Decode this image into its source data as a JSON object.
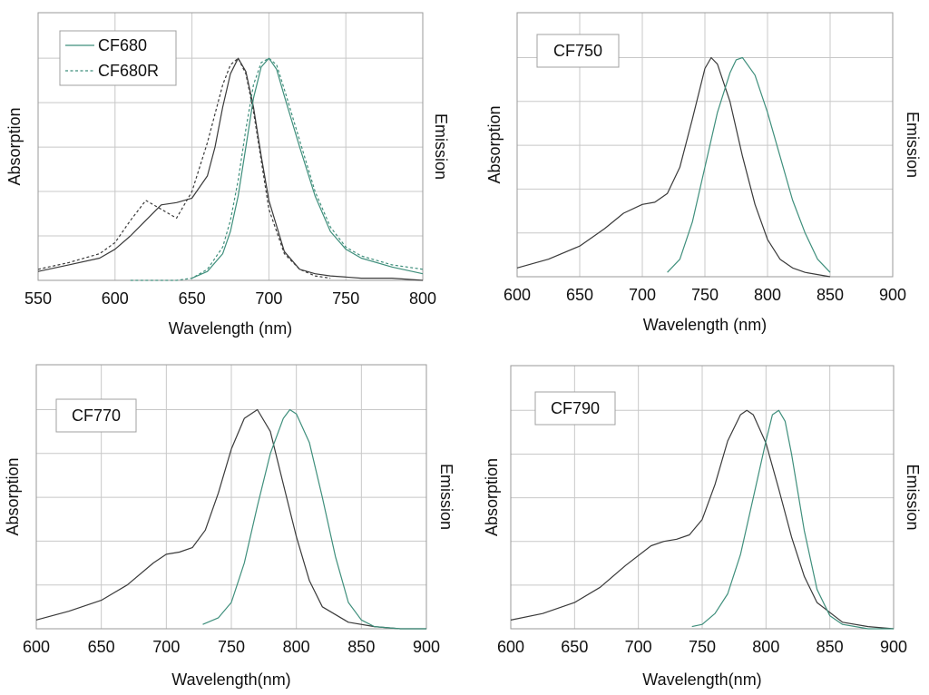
{
  "colors": {
    "absorption": "#3a3a3a",
    "emission": "#3f8f7c",
    "grid": "#c8c8c8"
  },
  "chart_data": [
    {
      "type": "line",
      "label": "",
      "legend": [
        "CF680",
        "CF680R"
      ],
      "legend_placement": "top-left",
      "xlabel": "Wavelength (nm)",
      "ylabel_left": "Absorption",
      "ylabel_right": "Emission",
      "xlim": [
        550,
        800
      ],
      "ylim": [
        0,
        1
      ],
      "xticks": [
        550,
        600,
        650,
        700,
        750,
        800
      ],
      "xtick_labels": [
        "550",
        "600",
        "650",
        "700",
        "750",
        "800"
      ],
      "grid": true,
      "series": [
        {
          "name": "CF680",
          "kind": "absorption",
          "style": "solid",
          "x": [
            550,
            570,
            590,
            600,
            610,
            620,
            630,
            640,
            650,
            660,
            665,
            670,
            675,
            680,
            685,
            690,
            695,
            700,
            710,
            720,
            730,
            740,
            760,
            780,
            800
          ],
          "y": [
            0.04,
            0.07,
            0.1,
            0.14,
            0.2,
            0.27,
            0.34,
            0.35,
            0.37,
            0.47,
            0.6,
            0.78,
            0.93,
            1.0,
            0.94,
            0.78,
            0.56,
            0.36,
            0.13,
            0.05,
            0.03,
            0.02,
            0.01,
            0.01,
            0.0
          ]
        },
        {
          "name": "CF680R",
          "kind": "absorption",
          "style": "dashed",
          "x": [
            550,
            570,
            590,
            600,
            610,
            620,
            630,
            640,
            650,
            660,
            670,
            675,
            680,
            685,
            690,
            700,
            710,
            720,
            730,
            740
          ],
          "y": [
            0.05,
            0.08,
            0.12,
            0.17,
            0.27,
            0.36,
            0.32,
            0.28,
            0.4,
            0.62,
            0.88,
            0.97,
            1.0,
            0.93,
            0.76,
            0.32,
            0.12,
            0.05,
            0.02,
            0.01
          ]
        },
        {
          "name": "CF680",
          "kind": "emission",
          "style": "solid",
          "x": [
            650,
            660,
            670,
            675,
            680,
            685,
            690,
            695,
            700,
            705,
            710,
            720,
            730,
            740,
            750,
            760,
            780,
            800
          ],
          "y": [
            0.01,
            0.04,
            0.12,
            0.22,
            0.38,
            0.6,
            0.82,
            0.96,
            1.0,
            0.95,
            0.83,
            0.6,
            0.38,
            0.22,
            0.14,
            0.1,
            0.06,
            0.03
          ]
        },
        {
          "name": "CF680R",
          "kind": "emission",
          "style": "dashed",
          "x": [
            610,
            640,
            650,
            660,
            670,
            675,
            680,
            685,
            690,
            695,
            700,
            705,
            710,
            720,
            730,
            740,
            750,
            760,
            780,
            800
          ],
          "y": [
            0.0,
            0.0,
            0.01,
            0.05,
            0.15,
            0.27,
            0.45,
            0.68,
            0.88,
            0.98,
            1.0,
            0.97,
            0.86,
            0.63,
            0.4,
            0.24,
            0.15,
            0.11,
            0.07,
            0.05
          ]
        }
      ]
    },
    {
      "type": "line",
      "label": "CF750",
      "xlabel": "Wavelength (nm)",
      "ylabel_left": "Absorption",
      "ylabel_right": "Emission",
      "xlim": [
        600,
        900
      ],
      "ylim": [
        0,
        1
      ],
      "xticks": [
        600,
        650,
        700,
        750,
        800,
        850,
        900
      ],
      "xtick_labels": [
        "600",
        "650",
        "700",
        "750",
        "800",
        "850",
        "900"
      ],
      "grid": true,
      "series": [
        {
          "kind": "absorption",
          "style": "solid",
          "x": [
            600,
            625,
            650,
            670,
            685,
            700,
            710,
            720,
            730,
            740,
            750,
            755,
            760,
            770,
            780,
            790,
            800,
            810,
            820,
            830,
            850
          ],
          "y": [
            0.04,
            0.08,
            0.14,
            0.22,
            0.29,
            0.33,
            0.34,
            0.38,
            0.5,
            0.72,
            0.95,
            1.0,
            0.97,
            0.8,
            0.55,
            0.33,
            0.17,
            0.08,
            0.04,
            0.02,
            0.0
          ]
        },
        {
          "kind": "emission",
          "style": "solid",
          "x": [
            720,
            730,
            740,
            750,
            760,
            770,
            775,
            780,
            790,
            800,
            810,
            820,
            830,
            840,
            850
          ],
          "y": [
            0.02,
            0.08,
            0.25,
            0.5,
            0.75,
            0.93,
            0.99,
            1.0,
            0.92,
            0.75,
            0.55,
            0.35,
            0.2,
            0.08,
            0.02
          ]
        }
      ]
    },
    {
      "type": "line",
      "label": "CF770",
      "xlabel": "Wavelength(nm)",
      "ylabel_left": "Absorption",
      "ylabel_right": "Emission",
      "xlim": [
        600,
        900
      ],
      "ylim": [
        0,
        1
      ],
      "xticks": [
        600,
        650,
        700,
        750,
        800,
        850,
        900
      ],
      "xtick_labels": [
        "600",
        "650",
        "700",
        "750",
        "800",
        "850",
        "900"
      ],
      "grid": true,
      "series": [
        {
          "kind": "absorption",
          "style": "solid",
          "x": [
            600,
            625,
            650,
            670,
            690,
            700,
            710,
            720,
            730,
            740,
            750,
            760,
            770,
            780,
            790,
            800,
            810,
            820,
            840,
            860,
            880,
            900
          ],
          "y": [
            0.04,
            0.08,
            0.13,
            0.2,
            0.3,
            0.34,
            0.35,
            0.37,
            0.45,
            0.62,
            0.82,
            0.96,
            1.0,
            0.9,
            0.66,
            0.42,
            0.22,
            0.1,
            0.03,
            0.01,
            0.0,
            0.0
          ]
        },
        {
          "kind": "emission",
          "style": "solid",
          "x": [
            728,
            740,
            750,
            760,
            770,
            780,
            790,
            795,
            800,
            810,
            820,
            830,
            840,
            850,
            860,
            880,
            900
          ],
          "y": [
            0.02,
            0.05,
            0.12,
            0.3,
            0.56,
            0.8,
            0.96,
            1.0,
            0.98,
            0.85,
            0.6,
            0.33,
            0.12,
            0.04,
            0.01,
            0.0,
            0.0
          ]
        }
      ]
    },
    {
      "type": "line",
      "label": "CF790",
      "xlabel": "Wavelength(nm)",
      "ylabel_left": "Absorption",
      "ylabel_right": "Emission",
      "xlim": [
        600,
        900
      ],
      "ylim": [
        0,
        1
      ],
      "xticks": [
        600,
        650,
        700,
        750,
        800,
        850,
        900
      ],
      "xtick_labels": [
        "600",
        "650",
        "700",
        "750",
        "800",
        "850",
        "900"
      ],
      "grid": true,
      "series": [
        {
          "kind": "absorption",
          "style": "solid",
          "x": [
            600,
            625,
            650,
            670,
            690,
            710,
            720,
            730,
            740,
            750,
            760,
            770,
            780,
            785,
            790,
            800,
            810,
            820,
            830,
            840,
            860,
            880,
            900
          ],
          "y": [
            0.04,
            0.07,
            0.12,
            0.19,
            0.29,
            0.38,
            0.4,
            0.41,
            0.43,
            0.5,
            0.66,
            0.86,
            0.98,
            1.0,
            0.98,
            0.85,
            0.64,
            0.42,
            0.24,
            0.12,
            0.03,
            0.01,
            0.0
          ]
        },
        {
          "kind": "emission",
          "style": "solid",
          "x": [
            742,
            750,
            760,
            770,
            780,
            790,
            800,
            805,
            810,
            815,
            820,
            830,
            840,
            850,
            860,
            880,
            900
          ],
          "y": [
            0.01,
            0.02,
            0.07,
            0.16,
            0.34,
            0.6,
            0.86,
            0.98,
            1.0,
            0.95,
            0.8,
            0.45,
            0.18,
            0.06,
            0.02,
            0.0,
            0.0
          ]
        }
      ]
    }
  ]
}
